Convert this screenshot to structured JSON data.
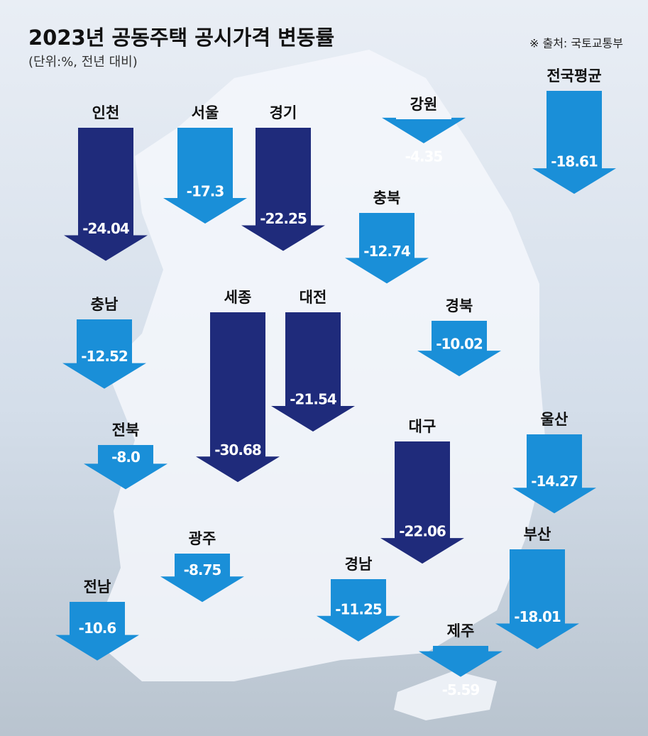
{
  "chart_data": {
    "type": "arrow",
    "title": "2023년 공동주택 공시가격 변동률",
    "subtitle": "(단위:%, 전년 대비)",
    "source": "※ 출처: 국토교통부",
    "categories": [
      "인천",
      "서울",
      "경기",
      "강원",
      "전국평균",
      "충북",
      "충남",
      "세종",
      "대전",
      "경북",
      "전북",
      "대구",
      "울산",
      "광주",
      "경남",
      "부산",
      "전남",
      "제주"
    ],
    "values": [
      -24.04,
      -17.3,
      -22.25,
      -4.35,
      -18.61,
      -12.74,
      -12.52,
      -30.68,
      -21.54,
      -10.02,
      -8.0,
      -22.06,
      -14.27,
      -8.75,
      -11.25,
      -18.01,
      -10.6,
      -5.59
    ],
    "value_labels": [
      "-24.04",
      "-17.3",
      "-22.25",
      "-4.35",
      "-18.61",
      "-12.74",
      "-12.52",
      "-30.68",
      "-21.54",
      "-10.02",
      "-8.0",
      "-22.06",
      "-14.27",
      "-8.75",
      "-11.25",
      "-18.01",
      "-10.6",
      "-5.59"
    ],
    "colors": [
      "#1f2b7b",
      "#1a8fd8",
      "#1f2b7b",
      "#1a8fd8",
      "#1a8fd8",
      "#1a8fd8",
      "#1a8fd8",
      "#1f2b7b",
      "#1f2b7b",
      "#1a8fd8",
      "#1a8fd8",
      "#1f2b7b",
      "#1a8fd8",
      "#1a8fd8",
      "#1a8fd8",
      "#1a8fd8",
      "#1a8fd8",
      "#1a8fd8"
    ]
  }
}
